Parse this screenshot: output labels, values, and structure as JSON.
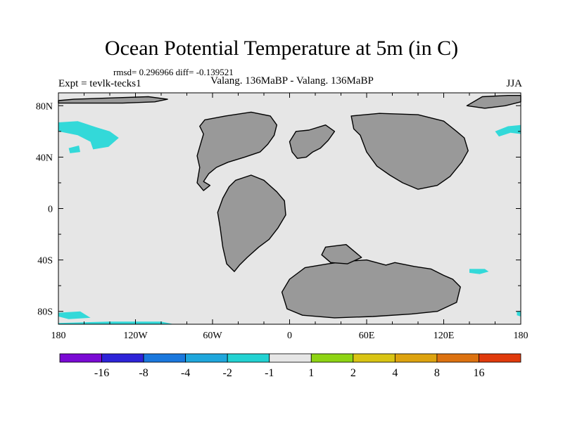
{
  "title": "Ocean Potential Temperature at 5m (in C)",
  "stats": "rmsd= 0.296966 diff= -0.139521",
  "experiment": "Expt = tevlk-tecks1",
  "subtitle": "Valang. 136MaBP - Valang. 136MaBP",
  "season": "JJA",
  "map": {
    "lon_range": [
      -180,
      180
    ],
    "lat_range": [
      -90,
      90
    ],
    "x_ticks": [
      {
        "lon": -180,
        "label": "180"
      },
      {
        "lon": -120,
        "label": "120W"
      },
      {
        "lon": -60,
        "label": "60W"
      },
      {
        "lon": 0,
        "label": "0"
      },
      {
        "lon": 60,
        "label": "60E"
      },
      {
        "lon": 120,
        "label": "120E"
      },
      {
        "lon": 180,
        "label": "180"
      }
    ],
    "y_ticks": [
      {
        "lat": 80,
        "label": "80N"
      },
      {
        "lat": 40,
        "label": "40N"
      },
      {
        "lat": 0,
        "label": "0"
      },
      {
        "lat": -40,
        "label": "40S"
      },
      {
        "lat": -80,
        "label": "80S"
      }
    ],
    "colors": {
      "ocean": "#e6e6e6",
      "land": "#999999",
      "coast": "#000000",
      "anomaly": "#33d9d9"
    },
    "land": [
      {
        "name": "north-america",
        "lonlat": [
          [
            -66,
            69
          ],
          [
            -50,
            72
          ],
          [
            -30,
            75
          ],
          [
            -15,
            72
          ],
          [
            -10,
            65
          ],
          [
            -12,
            57
          ],
          [
            -17,
            50
          ],
          [
            -23,
            44
          ],
          [
            -35,
            40
          ],
          [
            -48,
            36
          ],
          [
            -57,
            32
          ],
          [
            -63,
            27
          ],
          [
            -67,
            21
          ],
          [
            -62,
            18
          ],
          [
            -67,
            14
          ],
          [
            -72,
            20
          ],
          [
            -70,
            32
          ],
          [
            -72,
            41
          ],
          [
            -70,
            48
          ],
          [
            -67,
            58
          ],
          [
            -70,
            64
          ]
        ]
      },
      {
        "name": "south-america",
        "lonlat": [
          [
            -42,
            22
          ],
          [
            -30,
            26
          ],
          [
            -20,
            22
          ],
          [
            -10,
            13
          ],
          [
            -4,
            6
          ],
          [
            -3,
            -5
          ],
          [
            -9,
            -15
          ],
          [
            -16,
            -24
          ],
          [
            -24,
            -30
          ],
          [
            -33,
            -38
          ],
          [
            -39,
            -44
          ],
          [
            -43,
            -49
          ],
          [
            -49,
            -43
          ],
          [
            -52,
            -30
          ],
          [
            -54,
            -15
          ],
          [
            -56,
            -3
          ],
          [
            -52,
            8
          ],
          [
            -47,
            17
          ]
        ]
      },
      {
        "name": "europe",
        "lonlat": [
          [
            5,
            60
          ],
          [
            15,
            61
          ],
          [
            28,
            65
          ],
          [
            35,
            60
          ],
          [
            30,
            53
          ],
          [
            24,
            47
          ],
          [
            18,
            44
          ],
          [
            13,
            40
          ],
          [
            6,
            39
          ],
          [
            2,
            44
          ],
          [
            0,
            52
          ]
        ]
      },
      {
        "name": "asia",
        "lonlat": [
          [
            48,
            72
          ],
          [
            70,
            74
          ],
          [
            100,
            73
          ],
          [
            120,
            68
          ],
          [
            130,
            60
          ],
          [
            136,
            55
          ],
          [
            139,
            45
          ],
          [
            134,
            36
          ],
          [
            125,
            25
          ],
          [
            115,
            18
          ],
          [
            100,
            15
          ],
          [
            88,
            20
          ],
          [
            78,
            26
          ],
          [
            68,
            33
          ],
          [
            60,
            44
          ],
          [
            55,
            57
          ],
          [
            50,
            62
          ]
        ]
      },
      {
        "name": "antarctica-india",
        "lonlat": [
          [
            0,
            -55
          ],
          [
            12,
            -46
          ],
          [
            30,
            -43
          ],
          [
            45,
            -41
          ],
          [
            60,
            -40
          ],
          [
            75,
            -44
          ],
          [
            82,
            -42
          ],
          [
            97,
            -45
          ],
          [
            110,
            -47
          ],
          [
            120,
            -52
          ],
          [
            127,
            -55
          ],
          [
            133,
            -61
          ],
          [
            130,
            -73
          ],
          [
            115,
            -80
          ],
          [
            95,
            -82
          ],
          [
            65,
            -84
          ],
          [
            35,
            -85
          ],
          [
            10,
            -83
          ],
          [
            -2,
            -78
          ],
          [
            -6,
            -65
          ]
        ]
      },
      {
        "name": "africa-south",
        "lonlat": [
          [
            28,
            -30
          ],
          [
            44,
            -28
          ],
          [
            50,
            -33
          ],
          [
            56,
            -38
          ],
          [
            45,
            -43
          ],
          [
            32,
            -42
          ],
          [
            25,
            -36
          ]
        ]
      },
      {
        "name": "arctic-west",
        "lonlat": [
          [
            -180,
            84
          ],
          [
            -168,
            85
          ],
          [
            -140,
            86
          ],
          [
            -110,
            87
          ],
          [
            -95,
            85
          ],
          [
            -105,
            83
          ],
          [
            -130,
            82
          ],
          [
            -160,
            82
          ],
          [
            -180,
            82
          ]
        ]
      },
      {
        "name": "arctic-east",
        "lonlat": [
          [
            138,
            80
          ],
          [
            150,
            87
          ],
          [
            170,
            88
          ],
          [
            180,
            88
          ],
          [
            180,
            83
          ],
          [
            168,
            80
          ],
          [
            152,
            78
          ]
        ]
      }
    ],
    "anomalies": [
      {
        "name": "nw-pacific",
        "lonlat": [
          [
            -180,
            67
          ],
          [
            -165,
            68
          ],
          [
            -150,
            63
          ],
          [
            -140,
            60
          ],
          [
            -133,
            55
          ],
          [
            -141,
            48
          ],
          [
            -153,
            46
          ],
          [
            -155,
            52
          ],
          [
            -165,
            57
          ],
          [
            -180,
            60
          ]
        ]
      },
      {
        "name": "nw-pacific-spot",
        "lonlat": [
          [
            -172,
            47
          ],
          [
            -164,
            49
          ],
          [
            -163,
            44
          ],
          [
            -171,
            43
          ]
        ]
      },
      {
        "name": "ne-pacific",
        "lonlat": [
          [
            160,
            60
          ],
          [
            170,
            64
          ],
          [
            180,
            65
          ],
          [
            180,
            58
          ],
          [
            172,
            59
          ],
          [
            163,
            56
          ]
        ]
      },
      {
        "name": "southern-ocean",
        "lonlat": [
          [
            140,
            -47
          ],
          [
            152,
            -47
          ],
          [
            155,
            -49
          ],
          [
            148,
            -51
          ],
          [
            140,
            -50
          ]
        ]
      },
      {
        "name": "antarctic-west",
        "lonlat": [
          [
            -180,
            -81
          ],
          [
            -163,
            -80
          ],
          [
            -155,
            -85
          ],
          [
            -172,
            -86
          ],
          [
            -180,
            -84
          ]
        ]
      },
      {
        "name": "antarctic-south",
        "lonlat": [
          [
            -180,
            -89
          ],
          [
            -140,
            -88
          ],
          [
            -100,
            -88
          ],
          [
            -90,
            -90
          ],
          [
            -180,
            -90
          ]
        ]
      },
      {
        "name": "antarctic-east",
        "lonlat": [
          [
            177,
            -80
          ],
          [
            180,
            -80
          ],
          [
            180,
            -84
          ],
          [
            177,
            -83
          ]
        ]
      }
    ]
  },
  "colorbar": {
    "colors": [
      "#7a0ad4",
      "#2d23d8",
      "#1a78dd",
      "#1fa7dc",
      "#22d2d2",
      "#e6e6e6",
      "#8ed414",
      "#d9c414",
      "#dda30f",
      "#dc7210",
      "#e03a0c"
    ],
    "labels": [
      "-16",
      "-8",
      "-4",
      "-2",
      "-1",
      "1",
      "2",
      "4",
      "8",
      "16"
    ]
  }
}
